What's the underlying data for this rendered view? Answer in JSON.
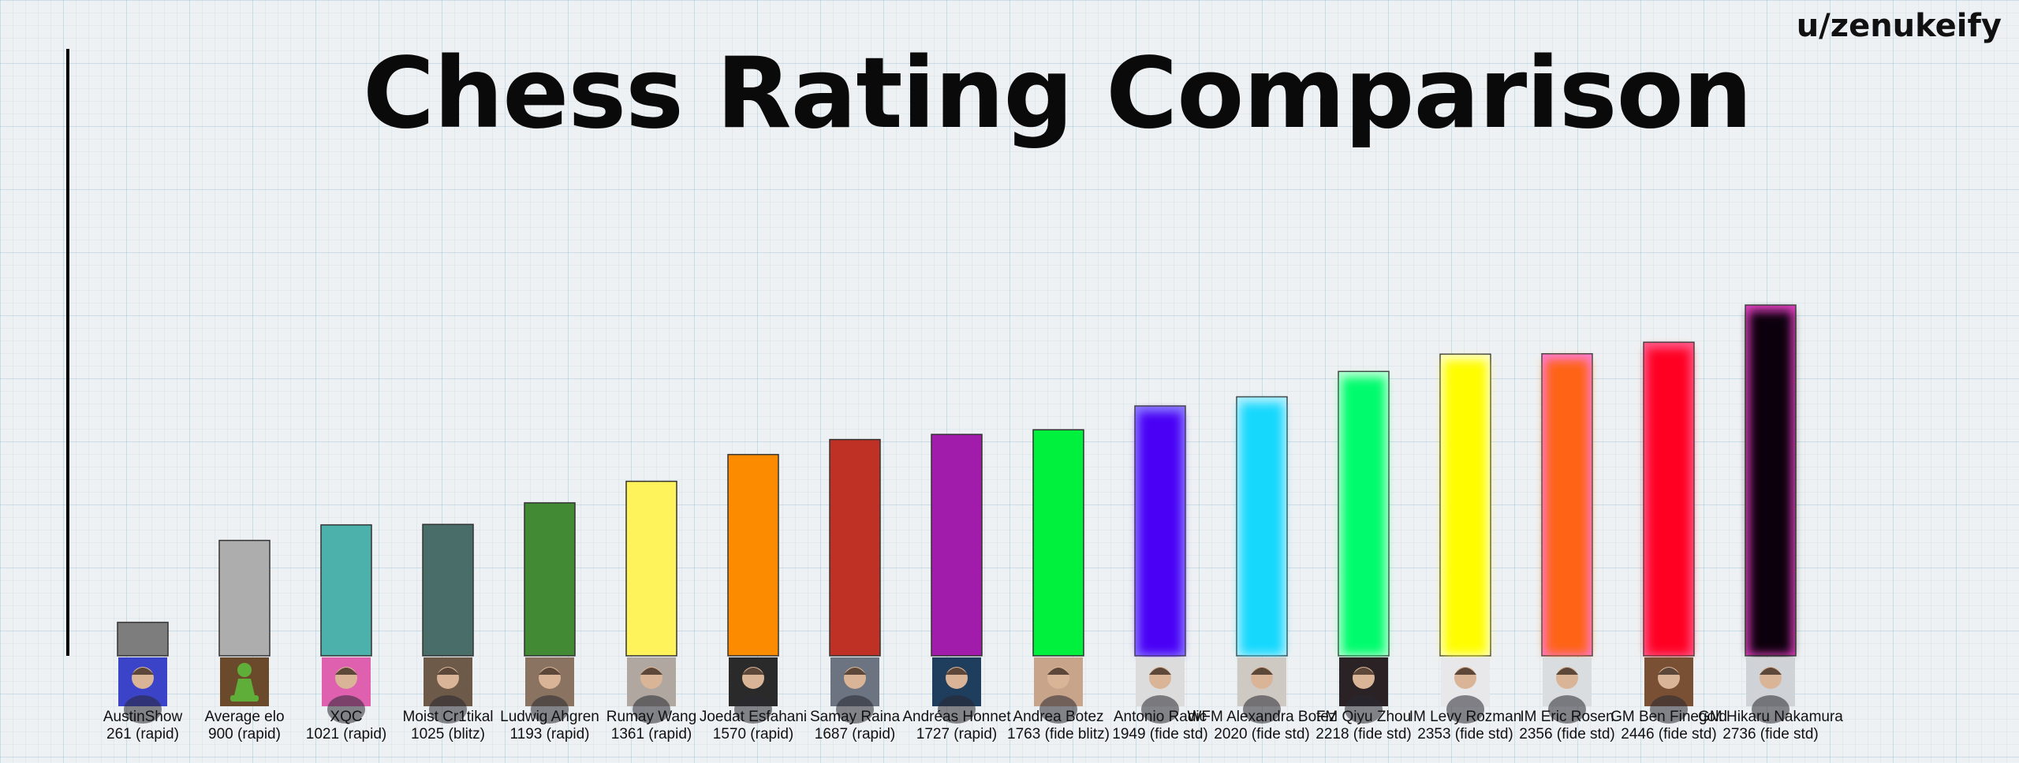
{
  "header": {
    "title": "Chess Rating Comparison",
    "watermark": "u/zenukeify"
  },
  "chart_data": {
    "type": "bar",
    "title": "Chess Rating Comparison",
    "xlabel": "",
    "ylabel": "",
    "ylim": [
      0,
      2736
    ],
    "grid": true,
    "legend": "none",
    "categories": [
      "AustinShow",
      "Average elo",
      "XQC",
      "Moist Cr1tikal",
      "Ludwig Ahgren",
      "Rumay Wang",
      "Joedat Esfahani",
      "Samay Raina",
      "Andréas Honnet",
      "Andrea Botez",
      "Antonio Radic",
      "WFM Alexandra Botez",
      "FM Qiyu Zhou",
      "IM Levy Rozman",
      "IM Eric Rosen",
      "GM Ben Finegold",
      "GM Hikaru Nakamura"
    ],
    "values": [
      261,
      900,
      1021,
      1025,
      1193,
      1361,
      1570,
      1687,
      1727,
      1763,
      1949,
      2020,
      2218,
      2353,
      2356,
      2446,
      2736
    ],
    "value_labels": [
      "261 (rapid)",
      "900 (rapid)",
      "1021 (rapid)",
      "1025 (blitz)",
      "1193 (rapid)",
      "1361 (rapid)",
      "1570 (rapid)",
      "1687 (rapid)",
      "1727 (rapid)",
      "1763 (fide blitz)",
      "1949 (fide std)",
      "2020 (fide std)",
      "2218 (fide std)",
      "2353 (fide std)",
      "2356 (fide std)",
      "2446 (fide std)",
      "2736 (fide std)"
    ],
    "colors": [
      "#7d7d7d",
      "#adadad",
      "#4db1ab",
      "#496e6a",
      "#428a34",
      "#fff35b",
      "#fd8b00",
      "#bf3125",
      "#a11cab",
      "#00f13d",
      "#4a03f5",
      "#13d8fd",
      "#00fc6d",
      "#fffd00",
      "#fe6314",
      "#ff0024",
      "#0c0008"
    ],
    "glow": [
      false,
      false,
      false,
      false,
      false,
      false,
      false,
      false,
      false,
      false,
      true,
      true,
      true,
      true,
      true,
      true,
      true
    ],
    "glow_colors": [
      "",
      "",
      "",
      "",
      "",
      "",
      "",
      "",
      "",
      "",
      "#8a7cff",
      "#b6f0ff",
      "#b8ffd4",
      "#ffffc0",
      "#ff7bd0",
      "#ff5a8a",
      "#e040c0"
    ],
    "avatars": [
      "person-avatar",
      "pawn-icon",
      "person-avatar",
      "person-avatar",
      "person-avatar",
      "person-avatar",
      "person-avatar",
      "person-avatar",
      "person-avatar",
      "person-avatar",
      "person-avatar",
      "person-avatar",
      "person-avatar",
      "person-avatar",
      "person-avatar",
      "person-avatar",
      "person-avatar"
    ],
    "avatar_bg": [
      "#3b44c9",
      "#6b4a2b",
      "#e060b0",
      "#6d5a48",
      "#8a7360",
      "#b0a8a0",
      "#2a2a2a",
      "#6b7480",
      "#1f3d5c",
      "#c8a48a",
      "#dcdcdc",
      "#cfc9c4",
      "#2b2226",
      "#e8e8ea",
      "#d9dde0",
      "#7a5034",
      "#cfd2d6"
    ]
  }
}
